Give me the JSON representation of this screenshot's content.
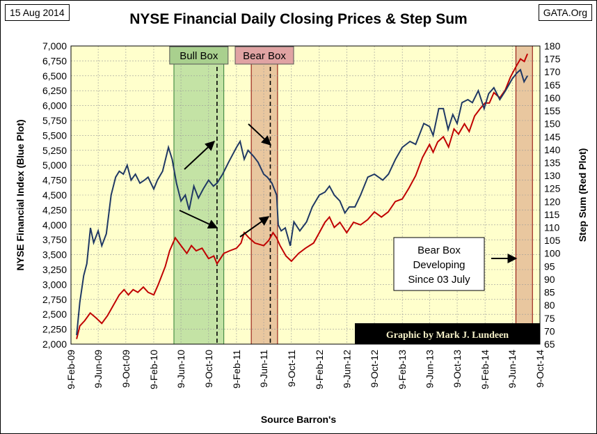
{
  "header": {
    "date": "15 Aug 2014",
    "source_site": "GATA.Org",
    "title": "NYSE Financial Daily Closing Prices & Step Sum",
    "xlabel": "Source Barron's",
    "ylabel_left": "NYSE Financial Index  (Blue Plot)",
    "ylabel_right": "Step Sum   (Red Plot)"
  },
  "colors": {
    "plot_background": "#ffffcc",
    "blue_series": "#1f3864",
    "red_series": "#c00000",
    "bull_box_fill": "#c4e3a5",
    "bear_box_fill": "#e9c79f",
    "bull_label_fill": "#a9d08e",
    "bear_label_fill": "#e0a3a3"
  },
  "chart_data": {
    "type": "line",
    "x_tick_labels": [
      "9-Feb-09",
      "9-Jun-09",
      "9-Oct-09",
      "9-Feb-10",
      "9-Jun-10",
      "9-Oct-10",
      "9-Feb-11",
      "9-Jun-11",
      "9-Oct-11",
      "9-Feb-12",
      "9-Jun-12",
      "9-Oct-12",
      "9-Feb-13",
      "9-Jun-13",
      "9-Oct-13",
      "9-Feb-14",
      "9-Jun-14",
      "9-Oct-14"
    ],
    "xlim": [
      "2009-02-09",
      "2014-10-09"
    ],
    "y_left_ticks": [
      "2,000",
      "2,250",
      "2,500",
      "2,750",
      "3,000",
      "3,250",
      "3,500",
      "3,750",
      "4,000",
      "4,250",
      "4,500",
      "4,750",
      "5,000",
      "5,250",
      "5,500",
      "5,750",
      "6,000",
      "6,250",
      "6,500",
      "6,750",
      "7,000"
    ],
    "y_left_lim": [
      2000,
      7000
    ],
    "y_right_ticks": [
      "65",
      "70",
      "75",
      "80",
      "85",
      "90",
      "95",
      "100",
      "105",
      "110",
      "115",
      "120",
      "125",
      "130",
      "135",
      "140",
      "145",
      "150",
      "155",
      "160",
      "165",
      "170",
      "175",
      "180"
    ],
    "y_right_lim": [
      65,
      180
    ],
    "grid": true,
    "series": [
      {
        "axis": "left",
        "points": [
          [
            "2009-03-06",
            2150
          ],
          [
            "2009-03-20",
            2700
          ],
          [
            "2009-04-06",
            3150
          ],
          [
            "2009-04-20",
            3350
          ],
          [
            "2009-05-06",
            3950
          ],
          [
            "2009-05-20",
            3700
          ],
          [
            "2009-06-09",
            3900
          ],
          [
            "2009-06-25",
            3650
          ],
          [
            "2009-07-15",
            3850
          ],
          [
            "2009-08-05",
            4500
          ],
          [
            "2009-08-25",
            4800
          ],
          [
            "2009-09-10",
            4900
          ],
          [
            "2009-09-28",
            4850
          ],
          [
            "2009-10-15",
            5000
          ],
          [
            "2009-11-01",
            4750
          ],
          [
            "2009-11-20",
            4850
          ],
          [
            "2009-12-10",
            4700
          ],
          [
            "2009-12-30",
            4750
          ],
          [
            "2010-01-15",
            4800
          ],
          [
            "2010-02-09",
            4600
          ],
          [
            "2010-02-25",
            4750
          ],
          [
            "2010-03-20",
            4900
          ],
          [
            "2010-04-15",
            5300
          ],
          [
            "2010-05-01",
            5100
          ],
          [
            "2010-05-20",
            4700
          ],
          [
            "2010-06-09",
            4400
          ],
          [
            "2010-06-28",
            4500
          ],
          [
            "2010-07-15",
            4250
          ],
          [
            "2010-08-05",
            4650
          ],
          [
            "2010-08-25",
            4450
          ],
          [
            "2010-09-15",
            4600
          ],
          [
            "2010-10-09",
            4750
          ],
          [
            "2010-10-30",
            4650
          ],
          [
            "2010-11-15",
            4700
          ],
          [
            "2010-12-10",
            4850
          ],
          [
            "2011-01-05",
            5050
          ],
          [
            "2011-02-09",
            5300
          ],
          [
            "2011-02-25",
            5400
          ],
          [
            "2011-03-15",
            5100
          ],
          [
            "2011-04-01",
            5250
          ],
          [
            "2011-04-25",
            5150
          ],
          [
            "2011-05-15",
            5050
          ],
          [
            "2011-06-09",
            4850
          ],
          [
            "2011-06-25",
            4800
          ],
          [
            "2011-07-15",
            4700
          ],
          [
            "2011-08-05",
            4500
          ],
          [
            "2011-08-12",
            4000
          ],
          [
            "2011-08-25",
            3900
          ],
          [
            "2011-09-12",
            3950
          ],
          [
            "2011-10-04",
            3650
          ],
          [
            "2011-10-20",
            4050
          ],
          [
            "2011-11-15",
            3900
          ],
          [
            "2011-12-15",
            4050
          ],
          [
            "2012-01-09",
            4300
          ],
          [
            "2012-02-09",
            4500
          ],
          [
            "2012-03-05",
            4550
          ],
          [
            "2012-03-25",
            4650
          ],
          [
            "2012-04-15",
            4500
          ],
          [
            "2012-05-10",
            4400
          ],
          [
            "2012-06-01",
            4200
          ],
          [
            "2012-06-20",
            4300
          ],
          [
            "2012-07-15",
            4300
          ],
          [
            "2012-08-09",
            4500
          ],
          [
            "2012-09-10",
            4800
          ],
          [
            "2012-10-09",
            4850
          ],
          [
            "2012-11-15",
            4750
          ],
          [
            "2012-12-10",
            4850
          ],
          [
            "2013-01-10",
            5100
          ],
          [
            "2013-02-09",
            5300
          ],
          [
            "2013-03-15",
            5400
          ],
          [
            "2013-04-09",
            5350
          ],
          [
            "2013-05-15",
            5700
          ],
          [
            "2013-06-09",
            5650
          ],
          [
            "2013-06-25",
            5500
          ],
          [
            "2013-07-20",
            5950
          ],
          [
            "2013-08-09",
            5950
          ],
          [
            "2013-08-30",
            5600
          ],
          [
            "2013-09-20",
            5850
          ],
          [
            "2013-10-09",
            5700
          ],
          [
            "2013-10-30",
            6050
          ],
          [
            "2013-11-25",
            6100
          ],
          [
            "2013-12-15",
            6050
          ],
          [
            "2014-01-10",
            6250
          ],
          [
            "2014-02-05",
            5950
          ],
          [
            "2014-02-25",
            6200
          ],
          [
            "2014-03-20",
            6300
          ],
          [
            "2014-04-15",
            6100
          ],
          [
            "2014-05-10",
            6250
          ],
          [
            "2014-06-09",
            6450
          ],
          [
            "2014-06-30",
            6550
          ],
          [
            "2014-07-15",
            6600
          ],
          [
            "2014-07-31",
            6400
          ],
          [
            "2014-08-15",
            6500
          ]
        ]
      },
      {
        "axis": "right",
        "points": [
          [
            "2009-03-06",
            67
          ],
          [
            "2009-03-20",
            72
          ],
          [
            "2009-04-10",
            74
          ],
          [
            "2009-05-05",
            77
          ],
          [
            "2009-06-01",
            75
          ],
          [
            "2009-06-25",
            73
          ],
          [
            "2009-07-20",
            76
          ],
          [
            "2009-08-15",
            80
          ],
          [
            "2009-09-10",
            84
          ],
          [
            "2009-10-01",
            86
          ],
          [
            "2009-10-20",
            84
          ],
          [
            "2009-11-10",
            86
          ],
          [
            "2009-12-01",
            85
          ],
          [
            "2009-12-25",
            87
          ],
          [
            "2010-01-15",
            85
          ],
          [
            "2010-02-09",
            84
          ],
          [
            "2010-03-01",
            88
          ],
          [
            "2010-04-01",
            95
          ],
          [
            "2010-04-20",
            101
          ],
          [
            "2010-05-15",
            106
          ],
          [
            "2010-06-09",
            103
          ],
          [
            "2010-07-05",
            100
          ],
          [
            "2010-07-25",
            103
          ],
          [
            "2010-08-15",
            101
          ],
          [
            "2010-09-10",
            102
          ],
          [
            "2010-10-09",
            98
          ],
          [
            "2010-11-01",
            99
          ],
          [
            "2010-11-15",
            96
          ],
          [
            "2010-12-15",
            100
          ],
          [
            "2011-01-10",
            101
          ],
          [
            "2011-02-09",
            102
          ],
          [
            "2011-03-01",
            104
          ],
          [
            "2011-03-15",
            108
          ],
          [
            "2011-04-05",
            106
          ],
          [
            "2011-05-01",
            104
          ],
          [
            "2011-06-09",
            103
          ],
          [
            "2011-07-01",
            105
          ],
          [
            "2011-07-20",
            108
          ],
          [
            "2011-08-05",
            106
          ],
          [
            "2011-08-20",
            103
          ],
          [
            "2011-09-15",
            99
          ],
          [
            "2011-10-09",
            97
          ],
          [
            "2011-11-10",
            100
          ],
          [
            "2011-12-10",
            102
          ],
          [
            "2012-01-15",
            104
          ],
          [
            "2012-02-09",
            108
          ],
          [
            "2012-03-05",
            112
          ],
          [
            "2012-03-25",
            114
          ],
          [
            "2012-04-15",
            110
          ],
          [
            "2012-05-10",
            112
          ],
          [
            "2012-06-09",
            108
          ],
          [
            "2012-07-09",
            112
          ],
          [
            "2012-08-09",
            111
          ],
          [
            "2012-09-09",
            113
          ],
          [
            "2012-10-09",
            116
          ],
          [
            "2012-11-09",
            114
          ],
          [
            "2012-12-09",
            116
          ],
          [
            "2013-01-09",
            120
          ],
          [
            "2013-02-09",
            121
          ],
          [
            "2013-03-09",
            125
          ],
          [
            "2013-04-09",
            130
          ],
          [
            "2013-05-09",
            137
          ],
          [
            "2013-06-09",
            142
          ],
          [
            "2013-06-25",
            139
          ],
          [
            "2013-07-15",
            143
          ],
          [
            "2013-08-09",
            145
          ],
          [
            "2013-09-01",
            141
          ],
          [
            "2013-09-25",
            148
          ],
          [
            "2013-10-15",
            146
          ],
          [
            "2013-11-10",
            150
          ],
          [
            "2013-12-01",
            147
          ],
          [
            "2013-12-25",
            153
          ],
          [
            "2014-01-20",
            156
          ],
          [
            "2014-02-09",
            158
          ],
          [
            "2014-02-28",
            158
          ],
          [
            "2014-03-20",
            162
          ],
          [
            "2014-04-15",
            160
          ],
          [
            "2014-05-09",
            163
          ],
          [
            "2014-06-01",
            168
          ],
          [
            "2014-06-25",
            172
          ],
          [
            "2014-07-15",
            175
          ],
          [
            "2014-08-01",
            174
          ],
          [
            "2014-08-15",
            177
          ]
        ]
      }
    ],
    "boxes": [
      {
        "label": "Bull Box",
        "x_start": "2010-05-09",
        "x_end": "2010-12-15",
        "marker_date": "2010-11-15"
      },
      {
        "label": "Bear Box",
        "x_start": "2011-04-15",
        "x_end": "2011-08-09",
        "marker_date": "2011-07-08"
      },
      {
        "label": "",
        "x_start": "2014-06-25",
        "x_end": "2014-09-06"
      }
    ],
    "annotations": {
      "note_lines": [
        "Bear Box",
        "Developing",
        "Since 03 July"
      ],
      "credit": "Graphic by Mark J. Lundeen"
    }
  }
}
